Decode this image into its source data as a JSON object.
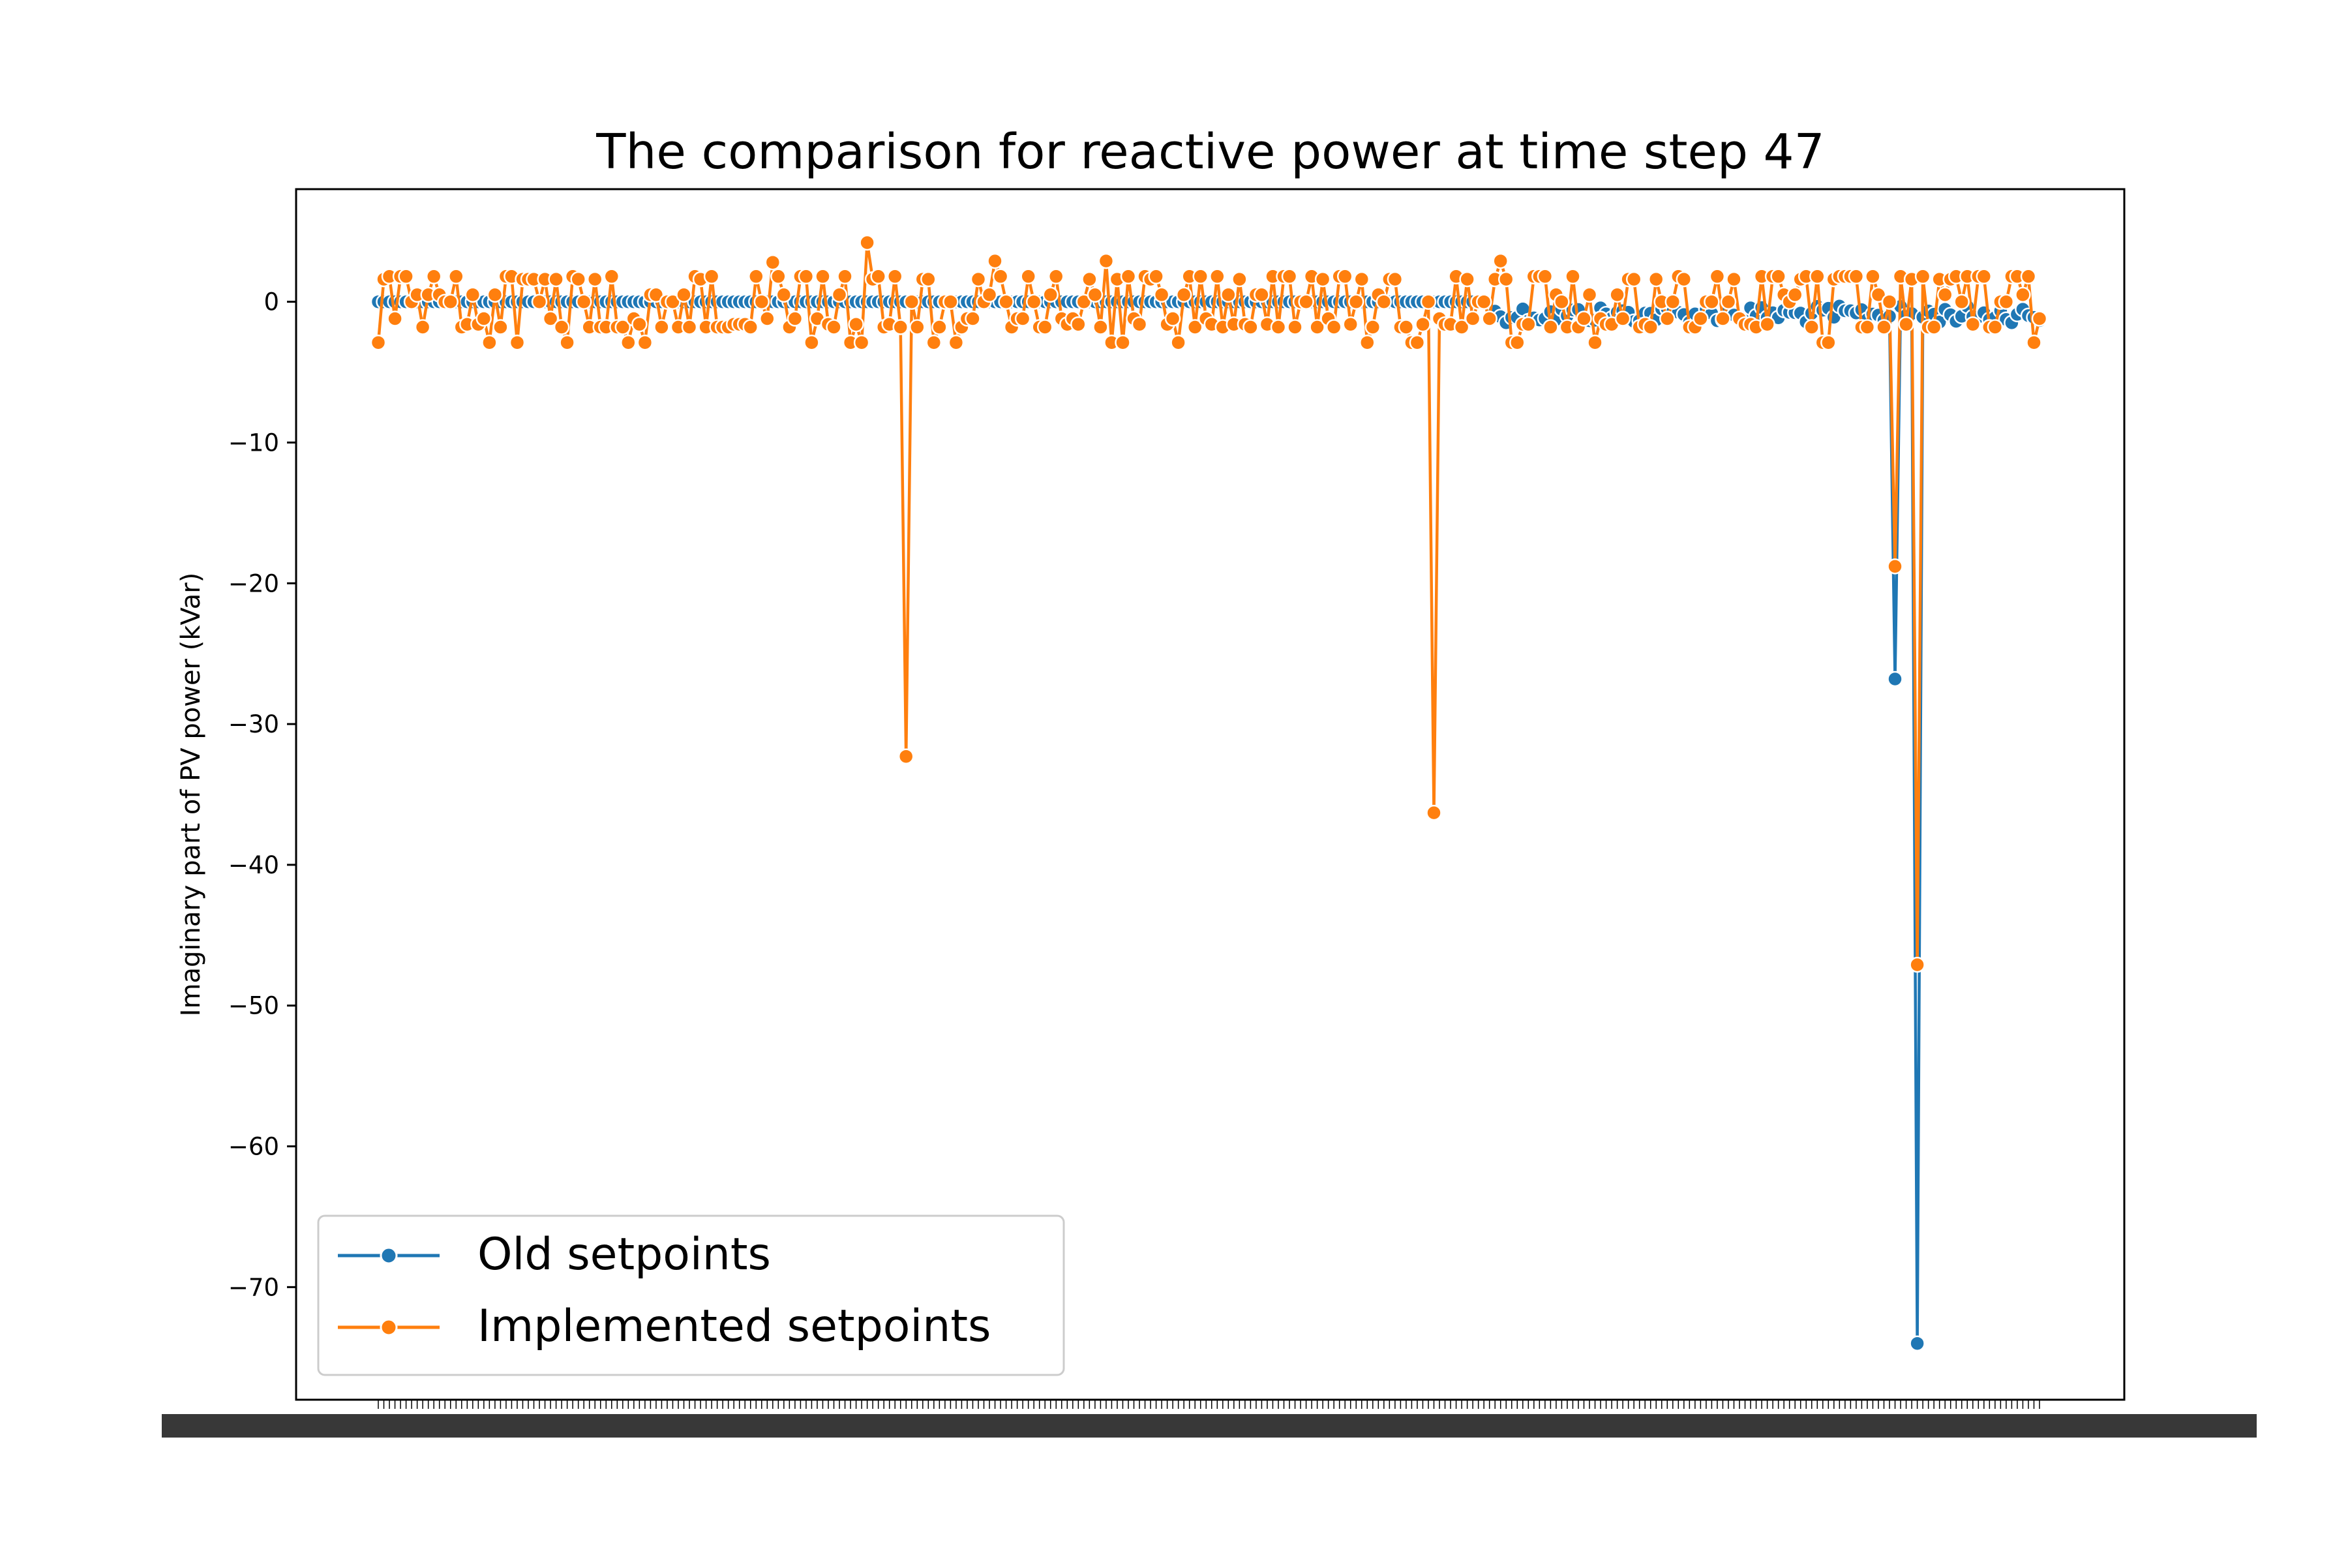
{
  "chart_data": {
    "type": "line",
    "title": "The comparison for reactive power at time step 47",
    "xlabel": "",
    "ylabel": "Imaginary part of PV power (kVar)",
    "ylim": [
      -78,
      8
    ],
    "yticks": [
      0,
      -10,
      -20,
      -30,
      -40,
      -50,
      -60,
      -70
    ],
    "ytick_labels": [
      "0",
      "−10",
      "−20",
      "−30",
      "−40",
      "−50",
      "−60",
      "−70"
    ],
    "xtick_labels_note": "dense overlapping unreadable tick labels",
    "n_points": 300,
    "legend_position": "lower-left",
    "grid": false,
    "series": [
      {
        "name": "Old setpoints",
        "color": "#1f77b4",
        "baseline": 0,
        "spikes": [
          {
            "index": 273,
            "value": -26.8
          },
          {
            "index": 277,
            "value": -74.0
          }
        ],
        "late_offsets": {
          "from_index": 200,
          "value_range": [
            -0.3,
            -1.5
          ]
        }
      },
      {
        "name": "Implemented setpoints",
        "color": "#ff7f0e",
        "oscillation_range": [
          -2,
          2
        ],
        "spikes": [
          {
            "index": 95,
            "value": -32.3
          },
          {
            "index": 190,
            "value": -36.3
          },
          {
            "index": 273,
            "value": -18.8
          },
          {
            "index": 277,
            "value": -47.1
          }
        ],
        "peaks": [
          {
            "index": 88,
            "value": 4.2
          },
          {
            "index": 71,
            "value": 2.8
          },
          {
            "index": 111,
            "value": 2.9
          },
          {
            "index": 131,
            "value": 2.9
          },
          {
            "index": 202,
            "value": 2.9
          }
        ]
      }
    ]
  }
}
